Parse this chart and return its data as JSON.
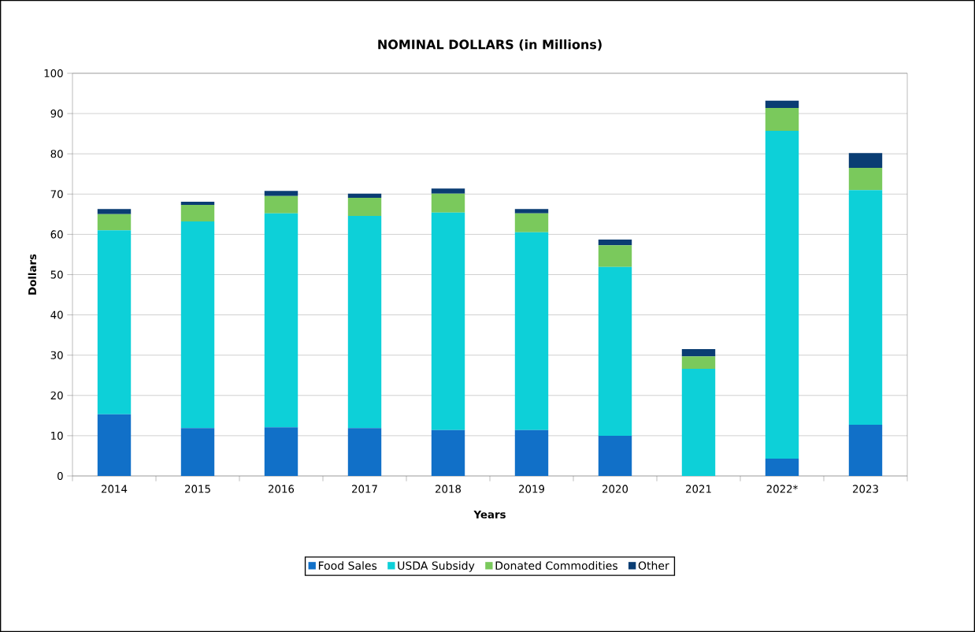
{
  "chart_data": {
    "type": "bar",
    "title": "NOMINAL DOLLARS (in Millions)",
    "xlabel": "Years",
    "ylabel": "Dollars",
    "stacked": true,
    "categories": [
      "2014",
      "2015",
      "2016",
      "2017",
      "2018",
      "2019",
      "2020",
      "2021",
      "2022*",
      "2023"
    ],
    "series": [
      {
        "name": "Food Sales",
        "color": "#1170c8",
        "values": [
          15.3,
          11.9,
          12.1,
          11.9,
          11.4,
          11.4,
          10.0,
          0,
          4.3,
          12.7
        ]
      },
      {
        "name": "USDA Subsidy",
        "color": "#0dd0d8",
        "values": [
          45.7,
          51.3,
          53.1,
          52.7,
          54.0,
          49.1,
          41.9,
          26.6,
          81.4,
          58.3
        ]
      },
      {
        "name": "Donated Commodities",
        "color": "#7ac95c",
        "values": [
          4.0,
          4.1,
          4.3,
          4.5,
          4.7,
          4.7,
          5.4,
          3.1,
          5.7,
          5.5
        ]
      },
      {
        "name": "Other",
        "color": "#0a3d73",
        "values": [
          1.3,
          0.8,
          1.3,
          1.0,
          1.3,
          1.1,
          1.4,
          1.8,
          1.8,
          3.7
        ]
      }
    ],
    "ylim": [
      0,
      100
    ],
    "yticks": [
      0,
      10,
      20,
      30,
      40,
      50,
      60,
      70,
      80,
      90,
      100
    ],
    "grid": "y",
    "legend": "bottom"
  }
}
